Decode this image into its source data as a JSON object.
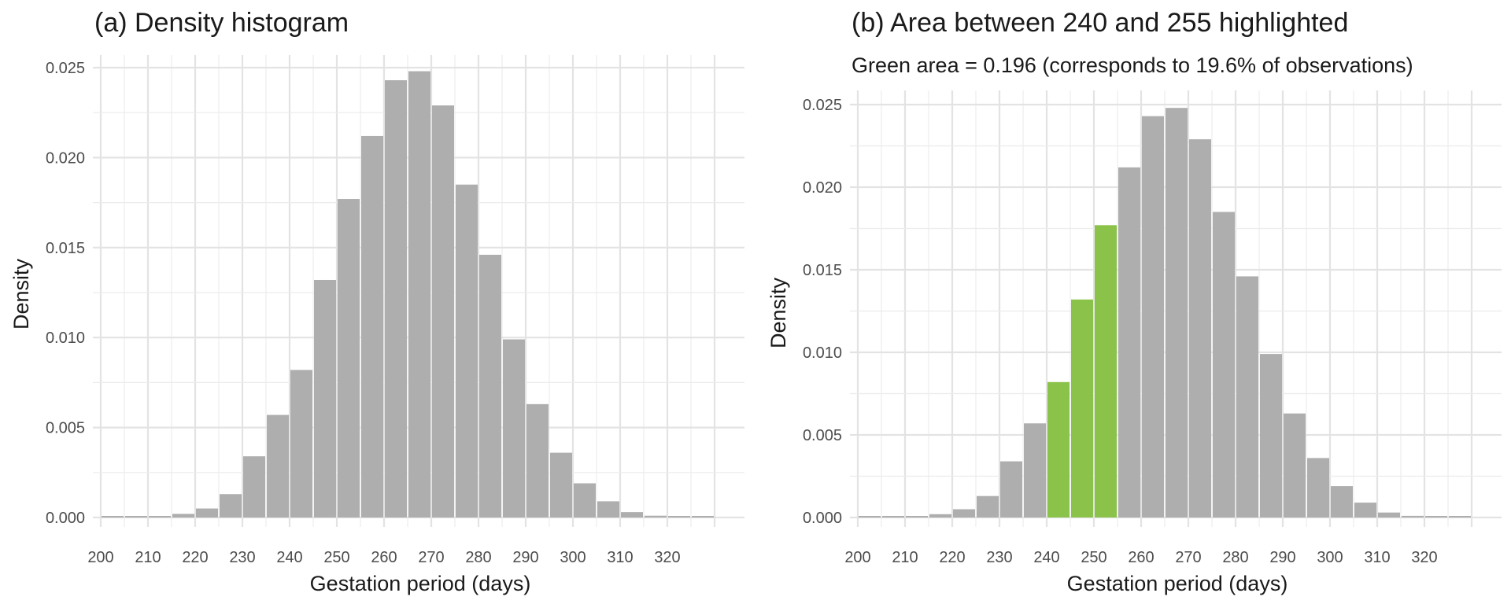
{
  "chart_data": [
    {
      "type": "bar",
      "title": "(a) Density histogram",
      "subtitle": "",
      "xlabel": "Gestation period (days)",
      "ylabel": "Density",
      "xlim": [
        200,
        335
      ],
      "ylim": [
        0,
        0.025
      ],
      "xticks": [
        "200",
        "210",
        "220",
        "230",
        "240",
        "250",
        "260",
        "270",
        "280",
        "290",
        "300",
        "310",
        "320"
      ],
      "yticks": [
        "0.000",
        "0.005",
        "0.010",
        "0.015",
        "0.020",
        "0.025"
      ],
      "grid": true,
      "bar_color": "#aeaeae",
      "highlight_color": "#8bc34a",
      "highlight_range": null,
      "bins": [
        {
          "x0": 200,
          "x1": 205,
          "value": 0.0
        },
        {
          "x0": 205,
          "x1": 210,
          "value": 0.0
        },
        {
          "x0": 210,
          "x1": 215,
          "value": 0.0
        },
        {
          "x0": 215,
          "x1": 220,
          "value": 0.0002
        },
        {
          "x0": 220,
          "x1": 225,
          "value": 0.0005
        },
        {
          "x0": 225,
          "x1": 230,
          "value": 0.0013
        },
        {
          "x0": 230,
          "x1": 235,
          "value": 0.0034
        },
        {
          "x0": 235,
          "x1": 240,
          "value": 0.0057
        },
        {
          "x0": 240,
          "x1": 245,
          "value": 0.0082
        },
        {
          "x0": 245,
          "x1": 250,
          "value": 0.0132
        },
        {
          "x0": 250,
          "x1": 255,
          "value": 0.0177
        },
        {
          "x0": 255,
          "x1": 260,
          "value": 0.0212
        },
        {
          "x0": 260,
          "x1": 265,
          "value": 0.0243
        },
        {
          "x0": 265,
          "x1": 270,
          "value": 0.0248
        },
        {
          "x0": 270,
          "x1": 275,
          "value": 0.0229
        },
        {
          "x0": 275,
          "x1": 280,
          "value": 0.0185
        },
        {
          "x0": 280,
          "x1": 285,
          "value": 0.0146
        },
        {
          "x0": 285,
          "x1": 290,
          "value": 0.0099
        },
        {
          "x0": 290,
          "x1": 295,
          "value": 0.0063
        },
        {
          "x0": 295,
          "x1": 300,
          "value": 0.0036
        },
        {
          "x0": 300,
          "x1": 305,
          "value": 0.0019
        },
        {
          "x0": 305,
          "x1": 310,
          "value": 0.0009
        },
        {
          "x0": 310,
          "x1": 315,
          "value": 0.0003
        },
        {
          "x0": 315,
          "x1": 320,
          "value": 0.0001
        },
        {
          "x0": 320,
          "x1": 325,
          "value": 0.0
        },
        {
          "x0": 325,
          "x1": 330,
          "value": 0.0
        }
      ]
    },
    {
      "type": "bar",
      "title": "(b) Area between 240 and 255 highlighted",
      "subtitle": "Green area = 0.196 (corresponds to 19.6% of observations)",
      "xlabel": "Gestation period (days)",
      "ylabel": "Density",
      "xlim": [
        200,
        335
      ],
      "ylim": [
        0,
        0.025
      ],
      "xticks": [
        "200",
        "210",
        "220",
        "230",
        "240",
        "250",
        "260",
        "270",
        "280",
        "290",
        "300",
        "310",
        "320"
      ],
      "yticks": [
        "0.000",
        "0.005",
        "0.010",
        "0.015",
        "0.020",
        "0.025"
      ],
      "grid": true,
      "bar_color": "#aeaeae",
      "highlight_color": "#8bc34a",
      "highlight_range": [
        240,
        255
      ],
      "bins": [
        {
          "x0": 200,
          "x1": 205,
          "value": 0.0
        },
        {
          "x0": 205,
          "x1": 210,
          "value": 0.0
        },
        {
          "x0": 210,
          "x1": 215,
          "value": 0.0
        },
        {
          "x0": 215,
          "x1": 220,
          "value": 0.0002
        },
        {
          "x0": 220,
          "x1": 225,
          "value": 0.0005
        },
        {
          "x0": 225,
          "x1": 230,
          "value": 0.0013
        },
        {
          "x0": 230,
          "x1": 235,
          "value": 0.0034
        },
        {
          "x0": 235,
          "x1": 240,
          "value": 0.0057
        },
        {
          "x0": 240,
          "x1": 245,
          "value": 0.0082
        },
        {
          "x0": 245,
          "x1": 250,
          "value": 0.0132
        },
        {
          "x0": 250,
          "x1": 255,
          "value": 0.0177
        },
        {
          "x0": 255,
          "x1": 260,
          "value": 0.0212
        },
        {
          "x0": 260,
          "x1": 265,
          "value": 0.0243
        },
        {
          "x0": 265,
          "x1": 270,
          "value": 0.0248
        },
        {
          "x0": 270,
          "x1": 275,
          "value": 0.0229
        },
        {
          "x0": 275,
          "x1": 280,
          "value": 0.0185
        },
        {
          "x0": 280,
          "x1": 285,
          "value": 0.0146
        },
        {
          "x0": 285,
          "x1": 290,
          "value": 0.0099
        },
        {
          "x0": 290,
          "x1": 295,
          "value": 0.0063
        },
        {
          "x0": 295,
          "x1": 300,
          "value": 0.0036
        },
        {
          "x0": 300,
          "x1": 305,
          "value": 0.0019
        },
        {
          "x0": 305,
          "x1": 310,
          "value": 0.0009
        },
        {
          "x0": 310,
          "x1": 315,
          "value": 0.0003
        },
        {
          "x0": 315,
          "x1": 320,
          "value": 0.0001
        },
        {
          "x0": 320,
          "x1": 325,
          "value": 0.0
        },
        {
          "x0": 325,
          "x1": 330,
          "value": 0.0
        }
      ]
    }
  ]
}
